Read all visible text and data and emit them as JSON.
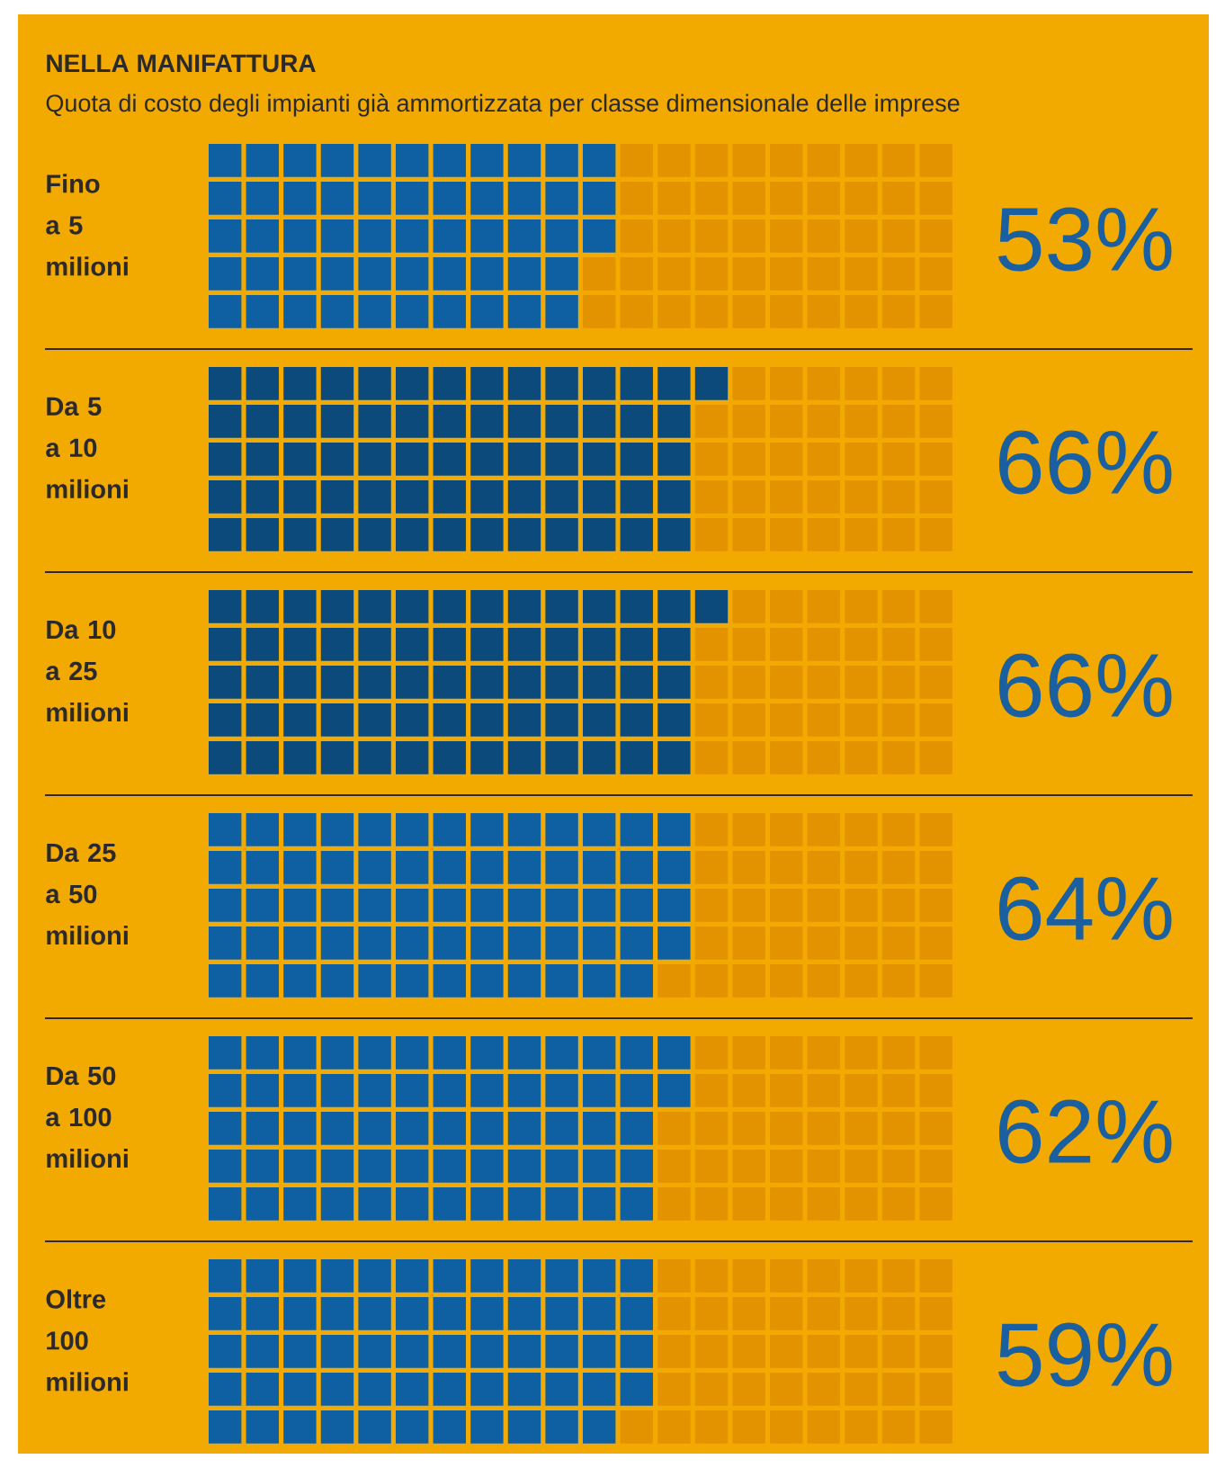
{
  "chart_data": {
    "type": "other",
    "title": "NELLA MANIFATTURA",
    "subtitle": "Quota di costo degli impianti già ammortizzata per classe dimensionale delle imprese",
    "categories": [
      "Fino a 5 milioni",
      "Da 5 a 10 milioni",
      "Da 10 a 25 milioni",
      "Da 25 a 50 milioni",
      "Da 50 a 100 milioni",
      "Oltre 100 milioni"
    ],
    "values": [
      53,
      66,
      66,
      64,
      62,
      59
    ],
    "value_labels": [
      "53%",
      "66%",
      "66%",
      "64%",
      "62%",
      "59%"
    ],
    "colors": [
      "#0f5fa3",
      "#0b4a7a",
      "#0b4a7a",
      "#0f5fa3",
      "#0f5fa3",
      "#0f5fa3"
    ]
  }
}
